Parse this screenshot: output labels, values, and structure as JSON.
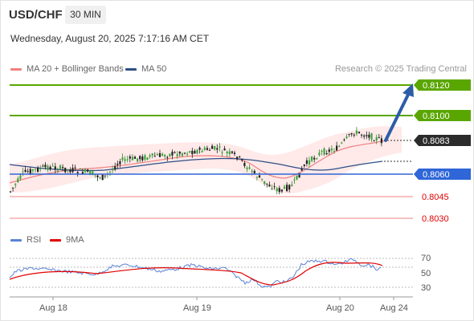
{
  "header": {
    "symbol": "USD/CHF",
    "timeframe": "30 MIN",
    "datetime": "Wednesday, August 20, 2025 7:17:16 AM CET"
  },
  "legend": {
    "items": [
      {
        "label": "MA 20 + Bollinger Bands",
        "color": "#f08080"
      },
      {
        "label": "MA 50",
        "color": "#2d4f87"
      }
    ],
    "credit": "Research © 2025 Trading Central"
  },
  "rsi_legend": {
    "items": [
      {
        "label": "RSI",
        "color": "#5a82d6"
      },
      {
        "label": "9MA",
        "color": "#e00000"
      }
    ]
  },
  "levels": {
    "target_high": "0.8120",
    "target": "0.8100",
    "current": "0.8083",
    "pivot": "0.8060",
    "support1": "0.8045",
    "support2": "0.8030"
  },
  "colors": {
    "green": "#5aa600",
    "blue": "#2f66d8",
    "red": "#e00000",
    "dark": "#333333"
  },
  "rsi_axis": [
    "70",
    "50",
    "30"
  ],
  "xaxis": [
    "Aug 18",
    "Aug 19",
    "Aug 20",
    "Aug 24"
  ]
}
